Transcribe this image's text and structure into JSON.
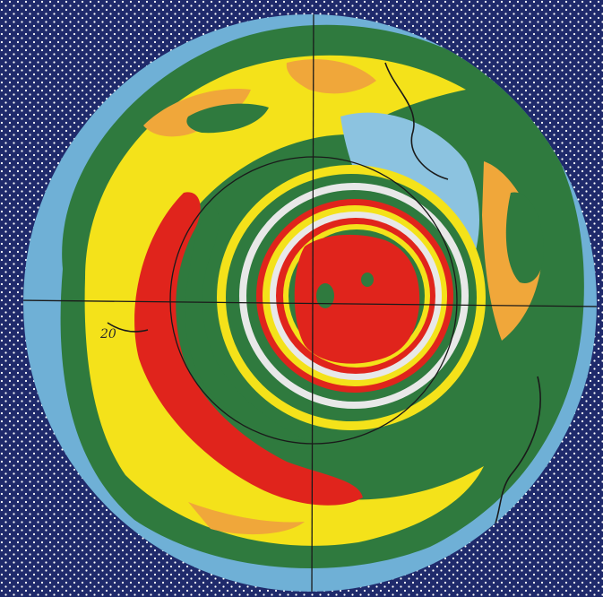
{
  "map": {
    "projection": "polar",
    "graticule_label": "20",
    "colors": {
      "background": "#1f2a6b",
      "background_speckle": "#ffffff",
      "ocean_rim": "#6fb0d6",
      "ocean_light": "#8cc3e0",
      "green": "#2f7a3e",
      "yellow": "#f4e21a",
      "orange": "#f0a73a",
      "red": "#e0241c",
      "white_band": "#e8e8e8",
      "line": "#1a1a1a"
    }
  }
}
